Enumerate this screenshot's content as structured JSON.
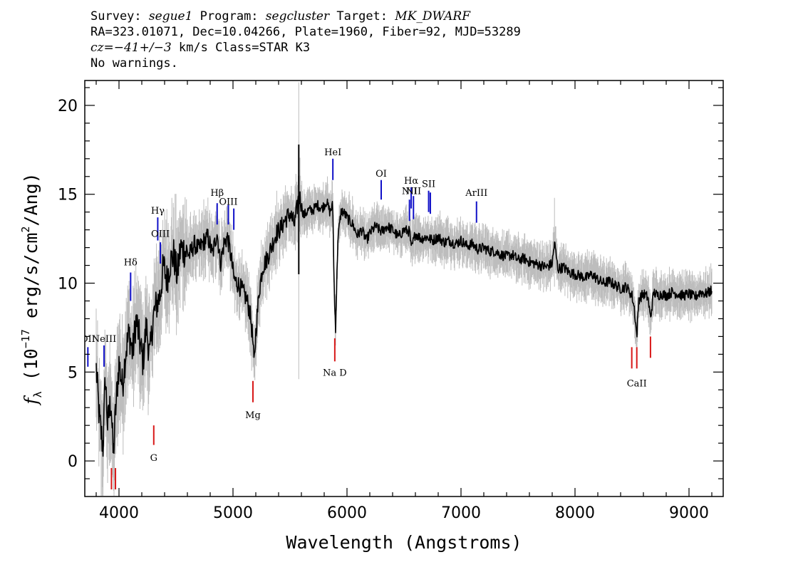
{
  "header": {
    "line1": {
      "survey_label": "Survey:",
      "survey": "segue1",
      "program_label": "Program:",
      "program": "segcluster",
      "target_label": "Target:",
      "target": "MK_DWARF"
    },
    "line2": "RA=323.01071, Dec=10.04266, Plate=1960, Fiber=92, MJD=53289",
    "line3": {
      "cz_symbol": "cz=",
      "cz_value": "−41+/−3",
      "rest": " km/s Class=STAR K3"
    },
    "line4": "No warnings."
  },
  "chart_data": {
    "type": "line",
    "xlabel": "Wavelength (Angstroms)",
    "ylabel_parts": {
      "f": "f",
      "sub": "λ",
      "a": " (10",
      "exp": "−17",
      "b": " erg/s/cm",
      "exp2": "2",
      "c": "/Ang)"
    },
    "xlim": [
      3700,
      9300
    ],
    "ylim": [
      -2,
      21.4
    ],
    "x_ticks": [
      4000,
      5000,
      6000,
      7000,
      8000,
      9000
    ],
    "x_tick_labels": [
      "4000",
      "5000",
      "6000",
      "7000",
      "8000",
      "9000"
    ],
    "y_ticks": [
      0,
      5,
      10,
      15,
      20
    ],
    "y_tick_labels": [
      "0",
      "5",
      "10",
      "15",
      "20"
    ],
    "grid": false,
    "colors": {
      "flux": "#000000",
      "noise": "#bdbdbd",
      "emission": "#1010c8",
      "absorption": "#d81818"
    },
    "spectrum": {
      "x": [
        3800,
        3830,
        3860,
        3880,
        3900,
        3930,
        3950,
        3970,
        4000,
        4030,
        4060,
        4090,
        4120,
        4150,
        4180,
        4210,
        4240,
        4270,
        4300,
        4330,
        4360,
        4390,
        4420,
        4450,
        4480,
        4510,
        4540,
        4580,
        4620,
        4660,
        4700,
        4740,
        4780,
        4820,
        4860,
        4890,
        4920,
        4950,
        4980,
        5010,
        5040,
        5080,
        5120,
        5150,
        5170,
        5185,
        5200,
        5230,
        5260,
        5300,
        5340,
        5380,
        5420,
        5460,
        5500,
        5540,
        5580,
        5620,
        5660,
        5700,
        5740,
        5780,
        5820,
        5850,
        5875,
        5890,
        5900,
        5920,
        5950,
        5980,
        6010,
        6050,
        6090,
        6130,
        6170,
        6200,
        6250,
        6300,
        6350,
        6400,
        6450,
        6500,
        6550,
        6563,
        6600,
        6650,
        6700,
        6750,
        6800,
        6850,
        6900,
        6950,
        7000,
        7050,
        7100,
        7150,
        7200,
        7250,
        7300,
        7350,
        7400,
        7450,
        7500,
        7550,
        7600,
        7650,
        7700,
        7750,
        7800,
        7820,
        7850,
        7900,
        7950,
        8000,
        8050,
        8100,
        8150,
        8200,
        8250,
        8300,
        8350,
        8400,
        8450,
        8500,
        8520,
        8542,
        8560,
        8600,
        8640,
        8662,
        8690,
        8720,
        8760,
        8800,
        8850,
        8900,
        8950,
        9000,
        9050,
        9100,
        9150,
        9200
      ],
      "flux": [
        5.2,
        2.2,
        0.8,
        4.8,
        2.0,
        3.5,
        0.2,
        2.8,
        5.5,
        4.2,
        6.2,
        7.2,
        6.0,
        8.0,
        6.8,
        5.6,
        7.6,
        5.8,
        8.1,
        8.8,
        9.3,
        11.0,
        10.2,
        11.2,
        11.6,
        10.4,
        12.0,
        11.8,
        11.6,
        12.2,
        11.9,
        12.3,
        12.6,
        11.6,
        12.9,
        11.1,
        12.2,
        12.6,
        11.6,
        10.2,
        10.0,
        9.6,
        9.1,
        8.3,
        7.1,
        5.4,
        7.2,
        9.6,
        10.9,
        11.4,
        12.1,
        12.8,
        13.1,
        13.6,
        13.9,
        13.3,
        15.0,
        13.8,
        14.1,
        14.1,
        14.4,
        14.2,
        14.6,
        14.0,
        14.4,
        9.0,
        7.5,
        12.5,
        14.1,
        13.9,
        13.6,
        13.3,
        12.7,
        13.0,
        12.4,
        12.8,
        13.2,
        12.9,
        13.2,
        13.0,
        12.6,
        13.0,
        12.9,
        11.9,
        12.8,
        12.5,
        12.6,
        12.4,
        12.6,
        12.3,
        12.4,
        12.2,
        12.4,
        12.1,
        12.2,
        11.9,
        12.0,
        11.8,
        11.8,
        11.6,
        11.5,
        11.6,
        11.3,
        11.4,
        11.2,
        11.1,
        11.0,
        10.9,
        11.1,
        12.3,
        10.8,
        10.9,
        10.6,
        10.5,
        10.4,
        10.3,
        10.5,
        10.2,
        10.0,
        10.1,
        9.9,
        9.7,
        9.8,
        9.3,
        8.6,
        7.0,
        9.1,
        9.4,
        9.2,
        8.0,
        9.5,
        9.3,
        9.4,
        9.3,
        9.5,
        9.4,
        9.3,
        9.4,
        9.2,
        9.5,
        9.4,
        9.6
      ]
    },
    "lines": [
      {
        "label": "OII",
        "x": 3727,
        "y1": 5.3,
        "y2": 6.4,
        "type": "emission",
        "label_y": 6.7
      },
      {
        "label": "NeIII",
        "x": 3869,
        "y1": 5.3,
        "y2": 6.5,
        "type": "emission",
        "label_y": 6.7
      },
      {
        "label": "Hδ",
        "x": 4102,
        "y1": 9.0,
        "y2": 10.6,
        "type": "emission",
        "label_y": 11.0
      },
      {
        "label": "Hγ",
        "x": 4340,
        "y1": 12.4,
        "y2": 13.7,
        "type": "emission",
        "label_y": 13.9
      },
      {
        "label": "OIII",
        "x": 4363,
        "y1": 11.1,
        "y2": 12.3,
        "type": "emission",
        "label_y": 12.6
      },
      {
        "label": "Hβ",
        "x": 4861,
        "y1": 13.3,
        "y2": 14.5,
        "type": "emission",
        "label_y": 14.9
      },
      {
        "label": "OIII",
        "x": 4959,
        "y1": 13.3,
        "y2": 14.4,
        "type": "emission",
        "label_y": 14.4
      },
      {
        "label": "",
        "x": 5007,
        "y1": 13.0,
        "y2": 14.2,
        "type": "emission",
        "label_y": 14.2
      },
      {
        "label": "HeI",
        "x": 5876,
        "y1": 15.8,
        "y2": 17.0,
        "type": "emission",
        "label_y": 17.2
      },
      {
        "label": "OI",
        "x": 6300,
        "y1": 14.7,
        "y2": 15.8,
        "type": "emission",
        "label_y": 16.0
      },
      {
        "label": "NII",
        "x": 6548,
        "y1": 13.5,
        "y2": 14.7,
        "type": "emission",
        "label_y": 15.0
      },
      {
        "label": "Hα",
        "x": 6563,
        "y1": 14.2,
        "y2": 15.4,
        "type": "emission",
        "label_y": 15.6
      },
      {
        "label": "NII",
        "x": 6583,
        "y1": 13.6,
        "y2": 14.9,
        "type": "emission",
        "label_y": 15.0
      },
      {
        "label": "SII",
        "x": 6716,
        "y1": 14.0,
        "y2": 15.2,
        "type": "emission",
        "label_y": 15.4
      },
      {
        "label": "",
        "x": 6731,
        "y1": 13.9,
        "y2": 15.1,
        "type": "emission",
        "label_y": 15.1
      },
      {
        "label": "ArIII",
        "x": 7136,
        "y1": 13.4,
        "y2": 14.6,
        "type": "emission",
        "label_y": 14.9
      },
      {
        "label": "",
        "x": 3934,
        "y1": -1.6,
        "y2": -0.4,
        "type": "absorption",
        "label_y": -2.0
      },
      {
        "label": "",
        "x": 3969,
        "y1": -1.6,
        "y2": -0.4,
        "type": "absorption",
        "label_y": -2.0
      },
      {
        "label": "G",
        "x": 4305,
        "y1": 0.9,
        "y2": 2.0,
        "type": "absorption",
        "label_y": -0.0
      },
      {
        "label": "Mg",
        "x": 5175,
        "y1": 3.3,
        "y2": 4.5,
        "type": "absorption",
        "label_y": 2.4
      },
      {
        "label": "Na D",
        "x": 5893,
        "y1": 5.6,
        "y2": 6.9,
        "type": "absorption",
        "label_y": 4.8
      },
      {
        "label": "",
        "x": 8498,
        "y1": 5.2,
        "y2": 6.4,
        "type": "absorption",
        "label_y": 4.2
      },
      {
        "label": "CaII",
        "x": 8542,
        "y1": 5.2,
        "y2": 6.4,
        "type": "absorption",
        "label_y": 4.2
      },
      {
        "label": "",
        "x": 8662,
        "y1": 5.8,
        "y2": 7.0,
        "type": "absorption",
        "label_y": 4.2
      }
    ]
  }
}
